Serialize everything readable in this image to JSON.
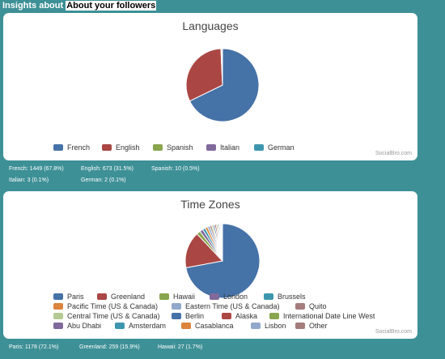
{
  "header": {
    "prefix": "Insights about",
    "highlight": "About your followers"
  },
  "chart_data": [
    {
      "type": "pie",
      "title": "Languages",
      "credit": "SocialBro.com",
      "slices": [
        {
          "label": "French",
          "value": 1449,
          "percent": 67.8,
          "color": "#4572a7"
        },
        {
          "label": "English",
          "value": 673,
          "percent": 31.5,
          "color": "#aa4643"
        },
        {
          "label": "Spanish",
          "value": 10,
          "percent": 0.5,
          "color": "#89a54e"
        },
        {
          "label": "Italian",
          "value": 3,
          "percent": 0.1,
          "color": "#80699b"
        },
        {
          "label": "German",
          "value": 2,
          "percent": 0.1,
          "color": "#3d96ae"
        }
      ],
      "stats": [
        "French: 1449 (67.8%)",
        "English: 673 (31.5%)",
        "Spanish: 10 (0.5%)",
        "Italian: 3 (0.1%)",
        "German: 2 (0.1%)"
      ]
    },
    {
      "type": "pie",
      "title": "Time Zones",
      "credit": "SocialBro.com",
      "slices": [
        {
          "label": "Paris",
          "value": 1178,
          "percent": 72.1,
          "color": "#4572a7"
        },
        {
          "label": "Greenland",
          "value": 259,
          "percent": 15.9,
          "color": "#aa4643"
        },
        {
          "label": "Hawaii",
          "value": 27,
          "percent": 1.7,
          "color": "#89a54e"
        },
        {
          "label": "London",
          "value": 24,
          "percent": 1.5,
          "color": "#80699b"
        },
        {
          "label": "Brussels",
          "value": 20,
          "percent": 1.2,
          "color": "#3d96ae"
        },
        {
          "label": "Pacific Time (US & Canada)",
          "value": 18,
          "percent": 1.1,
          "color": "#db843d"
        },
        {
          "label": "Eastern Time (US & Canada)",
          "value": 16,
          "percent": 1.0,
          "color": "#92a8cd"
        },
        {
          "label": "Quito",
          "value": 14,
          "percent": 0.9,
          "color": "#a47d7c"
        },
        {
          "label": "Central Time (US & Canada)",
          "value": 12,
          "percent": 0.7,
          "color": "#b5ca92"
        },
        {
          "label": "Berlin",
          "value": 11,
          "percent": 0.7,
          "color": "#4572a7"
        },
        {
          "label": "Alaska",
          "value": 10,
          "percent": 0.6,
          "color": "#aa4643"
        },
        {
          "label": "International Date Line West",
          "value": 9,
          "percent": 0.6,
          "color": "#89a54e"
        },
        {
          "label": "Abu Dhabi",
          "value": 8,
          "percent": 0.5,
          "color": "#80699b"
        },
        {
          "label": "Amsterdam",
          "value": 8,
          "percent": 0.5,
          "color": "#3d96ae"
        },
        {
          "label": "Casablanca",
          "value": 7,
          "percent": 0.4,
          "color": "#db843d"
        },
        {
          "label": "Lisbon",
          "value": 7,
          "percent": 0.4,
          "color": "#92a8cd"
        },
        {
          "label": "Other",
          "value": 6,
          "percent": 0.4,
          "color": "#a47d7c"
        }
      ],
      "stats": [
        "Paris: 1178 (72.1%)",
        "Greenland: 259 (15.9%)",
        "Hawaii: 27 (1.7%)"
      ]
    }
  ]
}
